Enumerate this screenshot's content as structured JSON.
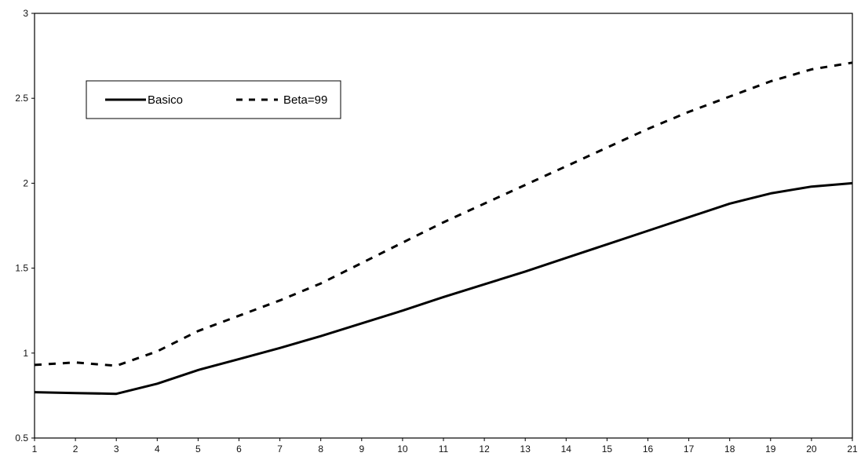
{
  "chart_data": {
    "type": "line",
    "title": "",
    "xlabel": "",
    "ylabel": "",
    "x": [
      1,
      2,
      3,
      4,
      5,
      6,
      7,
      8,
      9,
      10,
      11,
      12,
      13,
      14,
      15,
      16,
      17,
      18,
      19,
      20,
      21
    ],
    "ylim": [
      0.5,
      3
    ],
    "yticks": [
      "0.5",
      "1",
      "1.5",
      "2",
      "2.5",
      "3"
    ],
    "xticks": [
      "1",
      "2",
      "3",
      "4",
      "5",
      "6",
      "7",
      "8",
      "9",
      "10",
      "11",
      "12",
      "13",
      "14",
      "15",
      "16",
      "17",
      "18",
      "19",
      "20",
      "21"
    ],
    "grid": false,
    "legend_position": "top-left",
    "series": [
      {
        "name": "Basico",
        "style": "solid",
        "color": "#000000",
        "values": [
          0.77,
          0.765,
          0.76,
          0.82,
          0.9,
          0.965,
          1.03,
          1.1,
          1.175,
          1.25,
          1.33,
          1.405,
          1.48,
          1.56,
          1.64,
          1.72,
          1.8,
          1.88,
          1.94,
          1.98,
          2.0
        ]
      },
      {
        "name": "Beta=99",
        "style": "dashed",
        "color": "#000000",
        "values": [
          0.93,
          0.945,
          0.925,
          1.01,
          1.13,
          1.22,
          1.31,
          1.41,
          1.53,
          1.65,
          1.77,
          1.88,
          1.99,
          2.1,
          2.21,
          2.32,
          2.42,
          2.51,
          2.6,
          2.67,
          2.71
        ]
      }
    ]
  }
}
